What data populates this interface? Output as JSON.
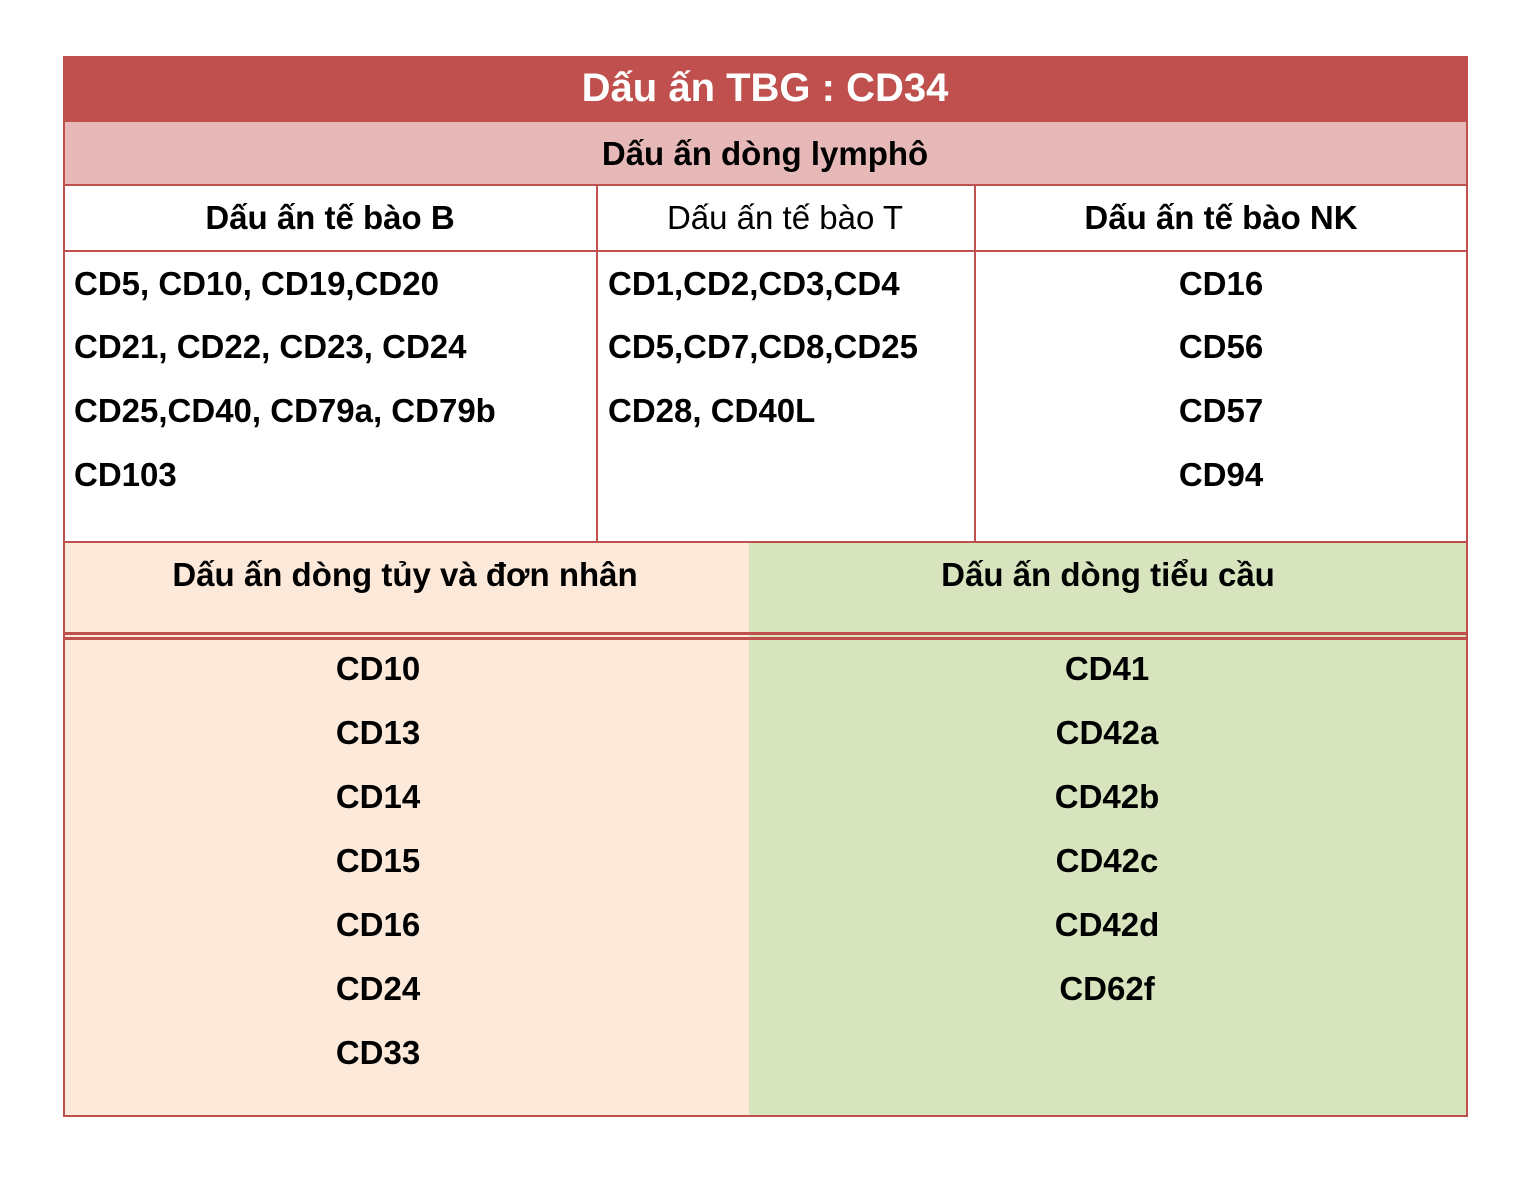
{
  "title": "Dấu ấn TBG : CD34",
  "lymphoid": {
    "title": "Dấu ấn dòng lymphô",
    "columns": [
      {
        "header": "Dấu ấn tế bào B",
        "lines": [
          "CD5, CD10, CD19,CD20",
          "CD21, CD22, CD23, CD24",
          "CD25,CD40, CD79a, CD79b",
          "CD103"
        ]
      },
      {
        "header": "Dấu ấn tế bào T",
        "lines": [
          "CD1,CD2,CD3,CD4",
          "CD5,CD7,CD8,CD25",
          "CD28, CD40L"
        ]
      },
      {
        "header": "Dấu ấn tế bào NK",
        "lines": [
          "CD16",
          "CD56",
          "CD57",
          "CD94"
        ]
      }
    ]
  },
  "myeloid": {
    "header": "Dấu ấn dòng tủy và đơn nhân",
    "items": [
      "CD10",
      "CD13",
      "CD14",
      "CD15",
      "CD16",
      "CD24",
      "CD33"
    ]
  },
  "platelet": {
    "header": "Dấu ấn dòng tiểu cầu",
    "items": [
      "CD41",
      "CD42a",
      "CD42b",
      "CD42c",
      "CD42d",
      "CD62f"
    ]
  }
}
